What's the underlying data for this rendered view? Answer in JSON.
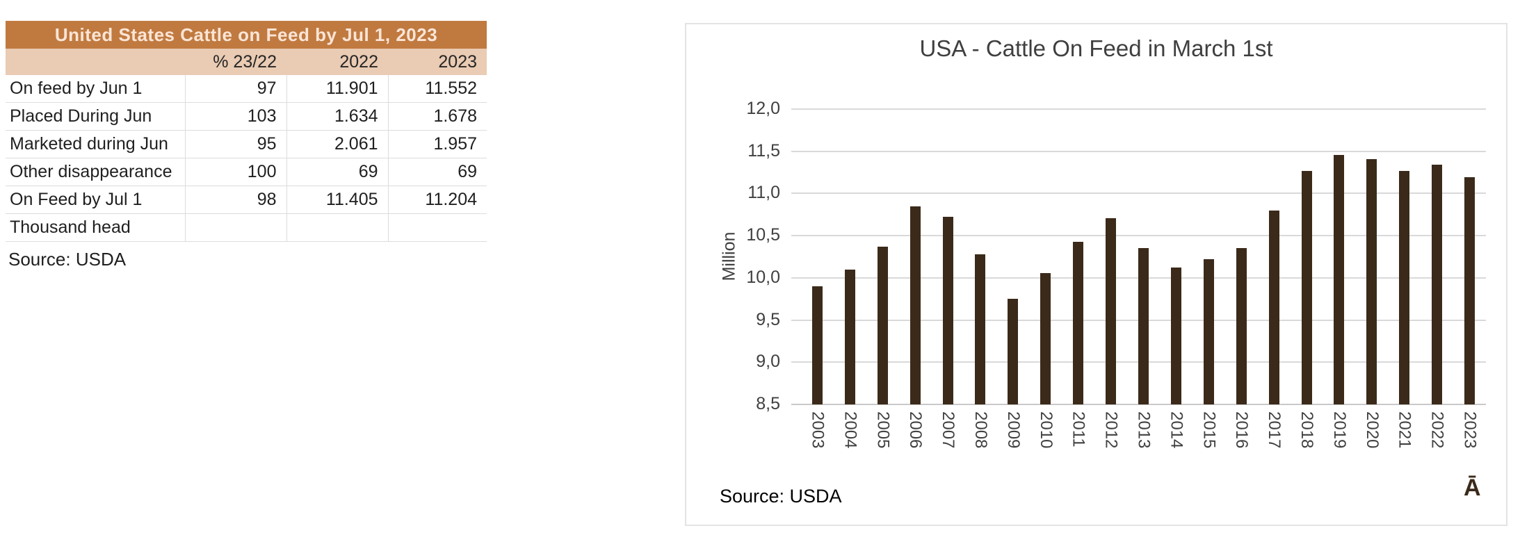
{
  "table": {
    "title": "United States Cattle on Feed by Jul 1, 2023",
    "columns": [
      "",
      "% 23/22",
      "2022",
      "2023"
    ],
    "rows": [
      [
        "On feed by Jun 1",
        "97",
        "11.901",
        "11.552"
      ],
      [
        "Placed During Jun",
        "103",
        "1.634",
        "1.678"
      ],
      [
        "Marketed during Jun",
        "95",
        "2.061",
        "1.957"
      ],
      [
        "Other disappearance",
        "100",
        "69",
        "69"
      ],
      [
        "On Feed by Jul 1",
        "98",
        "11.405",
        "11.204"
      ],
      [
        "Thousand head",
        "",
        "",
        ""
      ]
    ],
    "unit_note": "Thousand head",
    "source": "Source: USDA"
  },
  "chart": {
    "source": "Source: USDA",
    "watermark": "Ā"
  },
  "chart_data": {
    "type": "bar",
    "title": "USA - Cattle On Feed in March 1st",
    "xlabel": "",
    "ylabel": "Million",
    "categories": [
      "2003",
      "2004",
      "2005",
      "2006",
      "2007",
      "2008",
      "2009",
      "2010",
      "2011",
      "2012",
      "2013",
      "2014",
      "2015",
      "2016",
      "2017",
      "2018",
      "2019",
      "2020",
      "2021",
      "2022",
      "2023"
    ],
    "values": [
      9.9,
      10.1,
      10.37,
      10.85,
      10.72,
      10.28,
      9.75,
      10.06,
      10.43,
      10.71,
      10.35,
      10.12,
      10.22,
      10.35,
      10.8,
      11.27,
      11.46,
      11.41,
      11.27,
      11.34,
      11.19
    ],
    "ylim": [
      8.5,
      12.0
    ],
    "ytick_values": [
      8.5,
      9.0,
      9.5,
      10.0,
      10.5,
      11.0,
      11.5,
      12.0
    ],
    "ytick_labels": [
      "8,5",
      "9,0",
      "9,5",
      "10,0",
      "10,5",
      "11,0",
      "11,5",
      "12,0"
    ],
    "grid": true,
    "legend": false,
    "bar_color": "#3B2A1A"
  },
  "colors": {
    "table_title_bg": "#C07A40",
    "table_title_text": "#FBE5D6",
    "table_header_bg": "#EACBB3",
    "bar": "#3B2A1A",
    "gridline": "#D9D9D9",
    "axis_text": "#404040",
    "panel_border": "#E3E3E3"
  }
}
